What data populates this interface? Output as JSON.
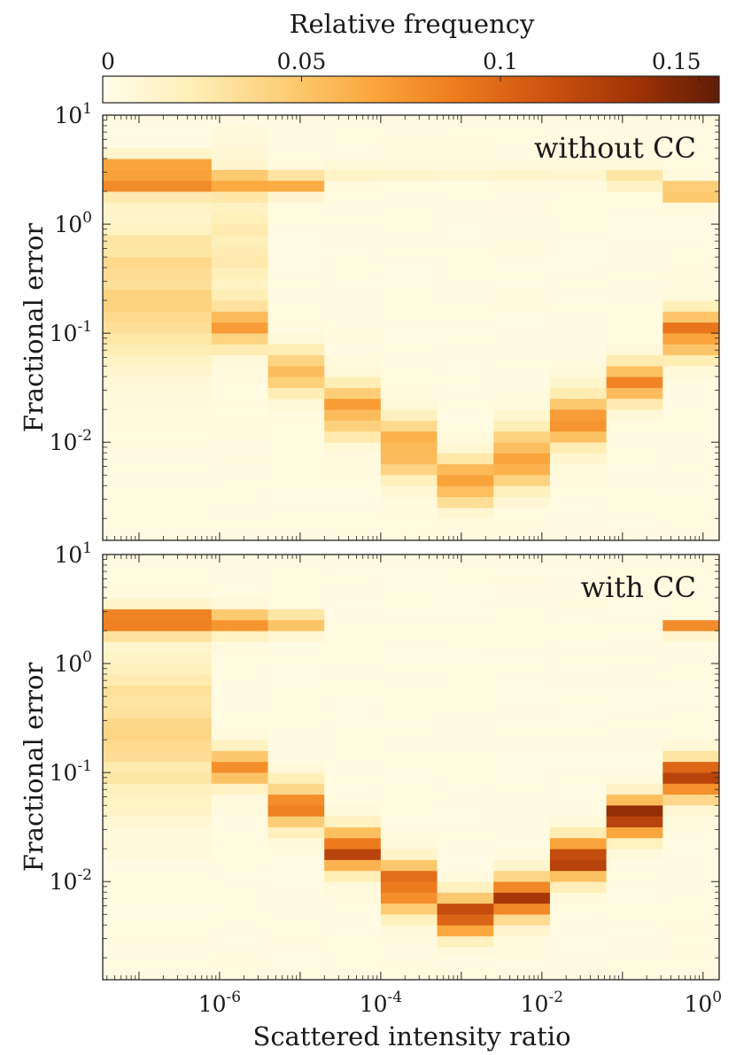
{
  "colorbar": {
    "label": "Relative frequency",
    "ticks": [
      {
        "value": 0,
        "label": "0"
      },
      {
        "value": 0.05,
        "label": "0.05"
      },
      {
        "value": 0.1,
        "label": "0.1"
      },
      {
        "value": 0.15,
        "label": "0.15"
      }
    ],
    "range": [
      0,
      0.155
    ],
    "colors": [
      "#fffdea",
      "#ffefb8",
      "#fdd07a",
      "#fba93f",
      "#ee7c1e",
      "#cf5410",
      "#a33406",
      "#5f1c07"
    ]
  },
  "chart_data": [
    {
      "type": "heatmap",
      "annotation": "without CC",
      "ylabel": "Fractional error",
      "xlabel": "",
      "x_scale": "log",
      "y_scale": "log",
      "xlim_log10": [
        -7.45,
        0.2
      ],
      "ylim_log10": [
        -2.9,
        1
      ],
      "x_bin_edges_log10": [
        -7.45,
        -6.1,
        -5.4,
        -4.7,
        -4.0,
        -3.3,
        -2.6,
        -1.9,
        -1.2,
        -0.5,
        0.2
      ],
      "y_bin_step_log10": 0.1,
      "y_bins_covered_log10": [
        -2.9,
        0.8
      ],
      "bin_profiles": [
        {
          "x_bin": 0,
          "peaks": [
            {
              "log10_center": 0.38,
              "width": 0.08,
              "value": 0.075
            },
            {
              "log10_center": 0.53,
              "width": 0.06,
              "value": 0.055
            },
            {
              "log10_center": -0.6,
              "width": 0.45,
              "value": 0.035
            }
          ]
        },
        {
          "x_bin": 1,
          "peaks": [
            {
              "log10_center": 0.38,
              "width": 0.07,
              "value": 0.06
            },
            {
              "log10_center": -0.95,
              "width": 0.12,
              "value": 0.055
            },
            {
              "log10_center": -0.2,
              "width": 0.5,
              "value": 0.02
            }
          ]
        },
        {
          "x_bin": 2,
          "peaks": [
            {
              "log10_center": 0.38,
              "width": 0.06,
              "value": 0.062
            },
            {
              "log10_center": -1.35,
              "width": 0.14,
              "value": 0.055
            }
          ]
        },
        {
          "x_bin": 3,
          "peaks": [
            {
              "log10_center": -1.7,
              "width": 0.16,
              "value": 0.065
            },
            {
              "log10_center": 0.47,
              "width": 0.06,
              "value": 0.012
            }
          ]
        },
        {
          "x_bin": 4,
          "peaks": [
            {
              "log10_center": -2.05,
              "width": 0.18,
              "value": 0.065
            },
            {
              "log10_center": 0.47,
              "width": 0.06,
              "value": 0.01
            }
          ]
        },
        {
          "x_bin": 5,
          "peaks": [
            {
              "log10_center": -2.35,
              "width": 0.14,
              "value": 0.07
            },
            {
              "log10_center": 0.47,
              "width": 0.06,
              "value": 0.008
            }
          ]
        },
        {
          "x_bin": 6,
          "peaks": [
            {
              "log10_center": -2.15,
              "width": 0.18,
              "value": 0.07
            },
            {
              "log10_center": 0.47,
              "width": 0.06,
              "value": 0.008
            }
          ]
        },
        {
          "x_bin": 7,
          "peaks": [
            {
              "log10_center": -1.8,
              "width": 0.17,
              "value": 0.065
            },
            {
              "log10_center": 0.47,
              "width": 0.06,
              "value": 0.01
            }
          ]
        },
        {
          "x_bin": 8,
          "peaks": [
            {
              "log10_center": -1.45,
              "width": 0.12,
              "value": 0.085
            },
            {
              "log10_center": 0.42,
              "width": 0.06,
              "value": 0.025
            }
          ]
        },
        {
          "x_bin": 9,
          "peaks": [
            {
              "log10_center": -1.0,
              "width": 0.14,
              "value": 0.08
            },
            {
              "log10_center": 0.3,
              "width": 0.05,
              "value": 0.065
            }
          ]
        }
      ]
    },
    {
      "type": "heatmap",
      "annotation": "with CC",
      "ylabel": "Fractional error",
      "xlabel": "Scattered intensity ratio",
      "x_scale": "log",
      "y_scale": "log",
      "xlim_log10": [
        -7.45,
        0.2
      ],
      "ylim_log10": [
        -2.9,
        1
      ],
      "x_bin_edges_log10": [
        -7.45,
        -6.1,
        -5.4,
        -4.7,
        -4.0,
        -3.3,
        -2.6,
        -1.9,
        -1.2,
        -0.5,
        0.2
      ],
      "y_bin_step_log10": 0.1,
      "y_bins_covered_log10": [
        -2.9,
        0.8
      ],
      "bin_profiles": [
        {
          "x_bin": 0,
          "peaks": [
            {
              "log10_center": 0.38,
              "width": 0.08,
              "value": 0.1
            },
            {
              "log10_center": -0.6,
              "width": 0.45,
              "value": 0.035
            }
          ]
        },
        {
          "x_bin": 1,
          "peaks": [
            {
              "log10_center": 0.38,
              "width": 0.07,
              "value": 0.075
            },
            {
              "log10_center": -0.95,
              "width": 0.12,
              "value": 0.065
            }
          ]
        },
        {
          "x_bin": 2,
          "peaks": [
            {
              "log10_center": 0.38,
              "width": 0.06,
              "value": 0.05
            },
            {
              "log10_center": -1.3,
              "width": 0.14,
              "value": 0.075
            }
          ]
        },
        {
          "x_bin": 3,
          "peaks": [
            {
              "log10_center": -1.7,
              "width": 0.13,
              "value": 0.11
            }
          ]
        },
        {
          "x_bin": 4,
          "peaks": [
            {
              "log10_center": -2.05,
              "width": 0.15,
              "value": 0.1
            }
          ]
        },
        {
          "x_bin": 5,
          "peaks": [
            {
              "log10_center": -2.3,
              "width": 0.12,
              "value": 0.115
            }
          ]
        },
        {
          "x_bin": 6,
          "peaks": [
            {
              "log10_center": -2.15,
              "width": 0.13,
              "value": 0.12
            }
          ]
        },
        {
          "x_bin": 7,
          "peaks": [
            {
              "log10_center": -1.8,
              "width": 0.13,
              "value": 0.11
            }
          ]
        },
        {
          "x_bin": 8,
          "peaks": [
            {
              "log10_center": -1.4,
              "width": 0.12,
              "value": 0.125
            }
          ]
        },
        {
          "x_bin": 9,
          "peaks": [
            {
              "log10_center": -1.05,
              "width": 0.12,
              "value": 0.12
            },
            {
              "log10_center": 0.33,
              "width": 0.04,
              "value": 0.075
            }
          ]
        }
      ]
    }
  ],
  "axes": {
    "x_ticks": [
      {
        "log10": -6,
        "base": "10",
        "exp": "-6"
      },
      {
        "log10": -4,
        "base": "10",
        "exp": "-4"
      },
      {
        "log10": -2,
        "base": "10",
        "exp": "-2"
      },
      {
        "log10": 0,
        "base": "10",
        "exp": "0"
      }
    ],
    "y_ticks": [
      {
        "log10": 1,
        "base": "10",
        "exp": "1"
      },
      {
        "log10": 0,
        "base": "10",
        "exp": "0"
      },
      {
        "log10": -1,
        "base": "10",
        "exp": "-1"
      },
      {
        "log10": -2,
        "base": "10",
        "exp": "-2"
      }
    ]
  }
}
